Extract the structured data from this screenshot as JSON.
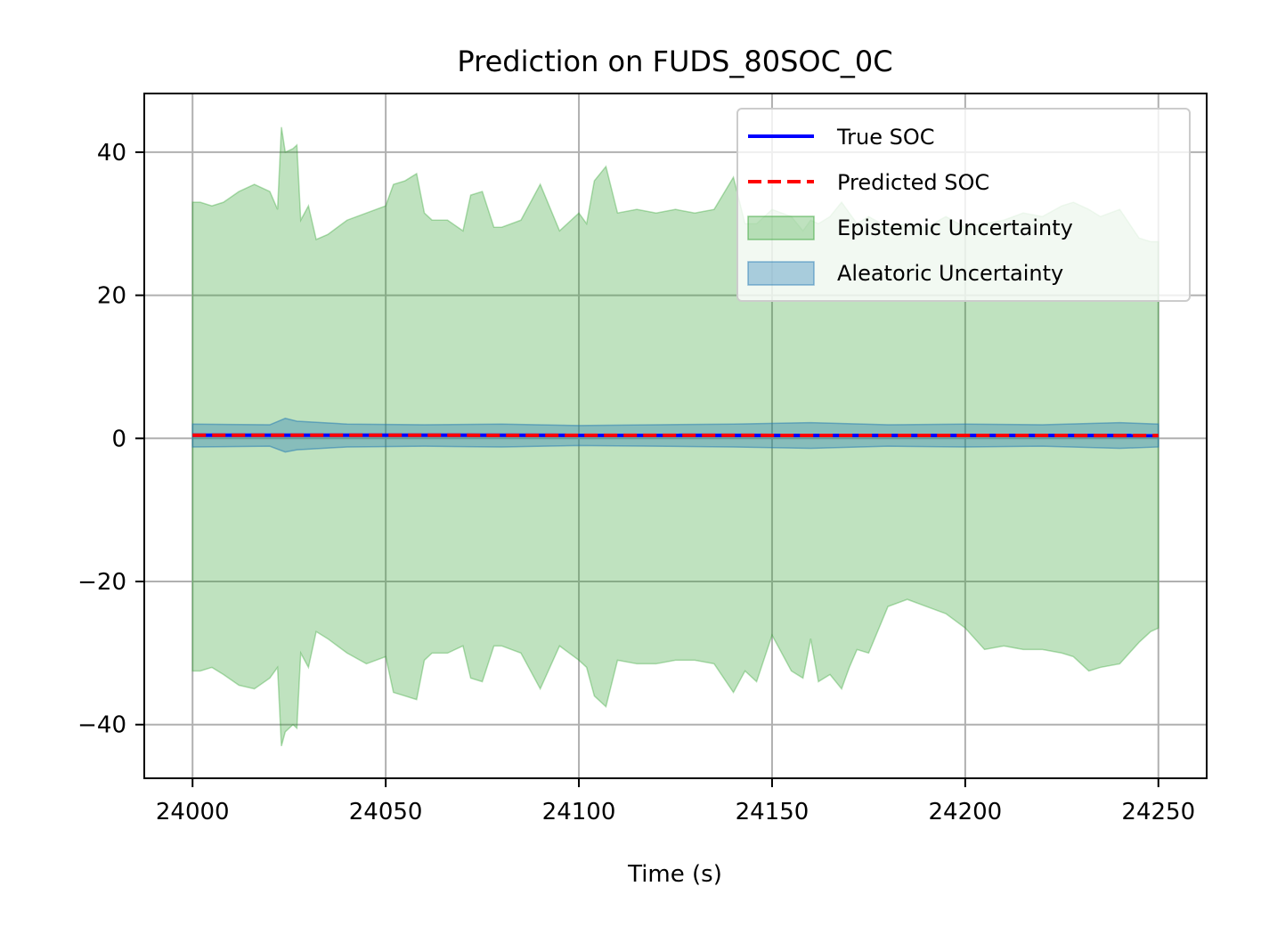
{
  "chart_data": {
    "type": "line",
    "title": "Prediction on FUDS_80SOC_0C",
    "xlabel": "Time (s)",
    "ylabel": "",
    "xlim": [
      23987.5,
      24262.5
    ],
    "ylim": [
      -47.5,
      48.2
    ],
    "xticks": [
      24000,
      24050,
      24100,
      24150,
      24200,
      24250
    ],
    "yticks": [
      -40,
      -20,
      0,
      20,
      40
    ],
    "xtick_labels": [
      "24000",
      "24050",
      "24100",
      "24150",
      "24200",
      "24250"
    ],
    "ytick_labels": [
      "−40",
      "−20",
      "0",
      "20",
      "40"
    ],
    "grid": true,
    "legend_position": "top-right",
    "legend": [
      {
        "label": "True SOC",
        "kind": "line",
        "color": "#0000ff",
        "dash": "solid"
      },
      {
        "label": "Predicted SOC",
        "kind": "line",
        "color": "#ff0000",
        "dash": "dashed"
      },
      {
        "label": "Epistemic Uncertainty",
        "kind": "patch",
        "color": "#2ca02c"
      },
      {
        "label": "Aleatoric Uncertainty",
        "kind": "patch",
        "color": "#1f77b4"
      }
    ],
    "series": {
      "true_soc": {
        "name": "True SOC",
        "color": "#0000ff",
        "x": [
          24000,
          24250
        ],
        "y": [
          0.45,
          0.4
        ]
      },
      "predicted_soc": {
        "name": "Predicted SOC",
        "color": "#ff0000",
        "x": [
          24000,
          24250
        ],
        "y": [
          0.45,
          0.4
        ]
      },
      "epistemic": {
        "name": "Epistemic Uncertainty",
        "color": "#2ca02c",
        "x": [
          24000,
          24002,
          24005,
          24008,
          24012,
          24016,
          24020,
          24022,
          24023,
          24024,
          24026,
          24027,
          24028,
          24030,
          24032,
          24035,
          24040,
          24045,
          24050,
          24052,
          24055,
          24058,
          24060,
          24062,
          24066,
          24070,
          24072,
          24075,
          24078,
          24080,
          24085,
          24090,
          24095,
          24100,
          24102,
          24104,
          24107,
          24110,
          24115,
          24120,
          24125,
          24130,
          24135,
          24140,
          24143,
          24146,
          24150,
          24155,
          24158,
          24160,
          24162,
          24165,
          24168,
          24170,
          24172,
          24175,
          24180,
          24185,
          24190,
          24195,
          24200,
          24205,
          24210,
          24215,
          24220,
          24225,
          24228,
          24232,
          24235,
          24240,
          24245,
          24248,
          24250
        ],
        "upper": [
          33.0,
          33.0,
          32.5,
          33.0,
          34.5,
          35.5,
          34.5,
          32.0,
          43.5,
          40.0,
          40.5,
          41.0,
          30.5,
          32.5,
          27.8,
          28.5,
          30.5,
          31.5,
          32.5,
          35.5,
          36.0,
          37.0,
          31.5,
          30.5,
          30.5,
          29.0,
          34.0,
          34.5,
          29.5,
          29.5,
          30.5,
          35.5,
          29.0,
          31.5,
          30.0,
          36.0,
          38.0,
          31.5,
          32.0,
          31.5,
          32.0,
          31.5,
          32.0,
          36.5,
          30.0,
          30.0,
          32.0,
          31.0,
          29.0,
          30.5,
          30.0,
          31.0,
          33.0,
          31.5,
          30.0,
          31.0,
          29.5,
          30.0,
          29.5,
          31.0,
          29.5,
          30.0,
          30.5,
          31.5,
          31.0,
          32.5,
          33.0,
          32.0,
          31.0,
          32.0,
          28.0,
          27.5,
          27.5
        ],
        "lower": [
          -32.5,
          -32.5,
          -32.0,
          -33.0,
          -34.5,
          -35.0,
          -33.5,
          -32.0,
          -43.0,
          -41.0,
          -40.0,
          -40.5,
          -30.0,
          -32.0,
          -27.0,
          -28.0,
          -30.0,
          -31.5,
          -30.5,
          -35.5,
          -36.0,
          -36.5,
          -31.0,
          -30.0,
          -30.0,
          -29.0,
          -33.5,
          -34.0,
          -29.0,
          -29.0,
          -30.0,
          -35.0,
          -29.0,
          -31.0,
          -32.0,
          -36.0,
          -37.5,
          -31.0,
          -31.5,
          -31.5,
          -31.0,
          -31.0,
          -31.5,
          -35.5,
          -32.5,
          -34.0,
          -27.5,
          -32.5,
          -33.5,
          -28.0,
          -34.0,
          -33.0,
          -35.0,
          -32.0,
          -29.5,
          -30.0,
          -23.5,
          -22.5,
          -23.5,
          -24.5,
          -26.5,
          -29.5,
          -29.0,
          -29.5,
          -29.5,
          -30.0,
          -30.5,
          -32.5,
          -32.0,
          -31.5,
          -28.5,
          -27.0,
          -26.5
        ]
      },
      "aleatoric": {
        "name": "Aleatoric Uncertainty",
        "color": "#1f77b4",
        "x": [
          24000,
          24020,
          24024,
          24027,
          24040,
          24060,
          24080,
          24100,
          24120,
          24140,
          24160,
          24180,
          24200,
          24220,
          24240,
          24250
        ],
        "upper": [
          2.0,
          1.9,
          2.8,
          2.4,
          2.0,
          1.9,
          2.0,
          1.8,
          1.9,
          2.0,
          2.2,
          1.9,
          2.0,
          1.9,
          2.2,
          2.0
        ],
        "lower": [
          -1.2,
          -1.1,
          -1.9,
          -1.6,
          -1.2,
          -1.1,
          -1.2,
          -1.0,
          -1.1,
          -1.2,
          -1.4,
          -1.1,
          -1.2,
          -1.1,
          -1.4,
          -1.2
        ]
      }
    }
  }
}
